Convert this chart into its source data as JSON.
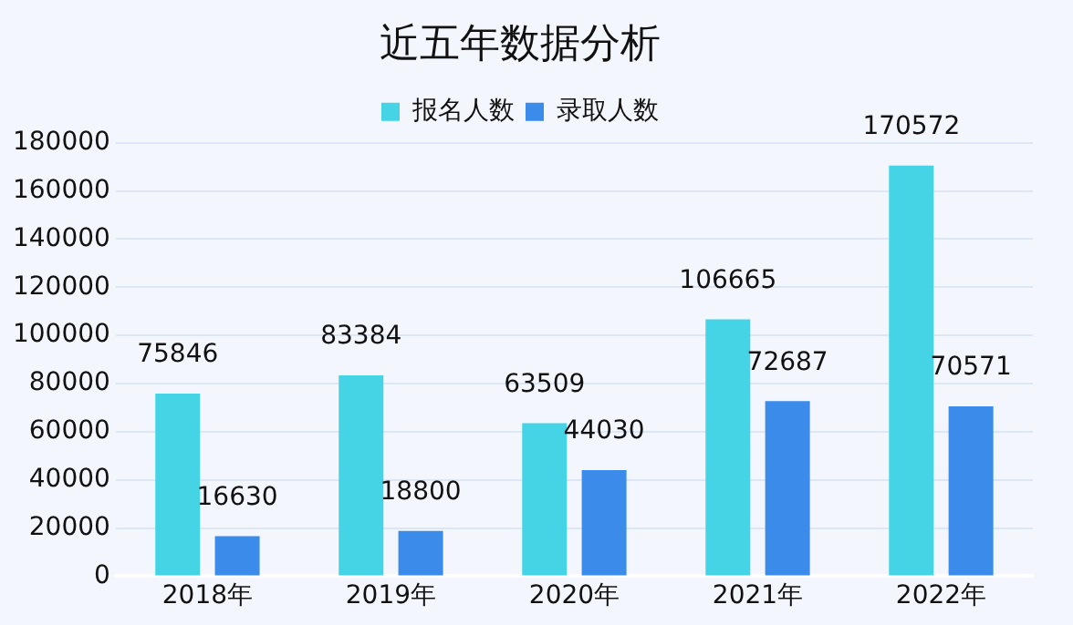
{
  "chart_data": {
    "type": "bar",
    "title": "近五年数据分析",
    "categories": [
      "2018年",
      "2019年",
      "2020年",
      "2021年",
      "2022年"
    ],
    "series": [
      {
        "name": "报名人数",
        "color": "#45d4e6",
        "values": [
          75846,
          83384,
          63509,
          106665,
          170572
        ]
      },
      {
        "name": "录取人数",
        "color": "#3b8beb",
        "values": [
          16630,
          18800,
          44030,
          72687,
          70571
        ]
      }
    ],
    "ylim": [
      0,
      180000
    ],
    "yticks": [
      0,
      20000,
      40000,
      60000,
      80000,
      100000,
      120000,
      140000,
      160000,
      180000
    ],
    "grid": "y",
    "legend": "top",
    "data_labels": true
  }
}
